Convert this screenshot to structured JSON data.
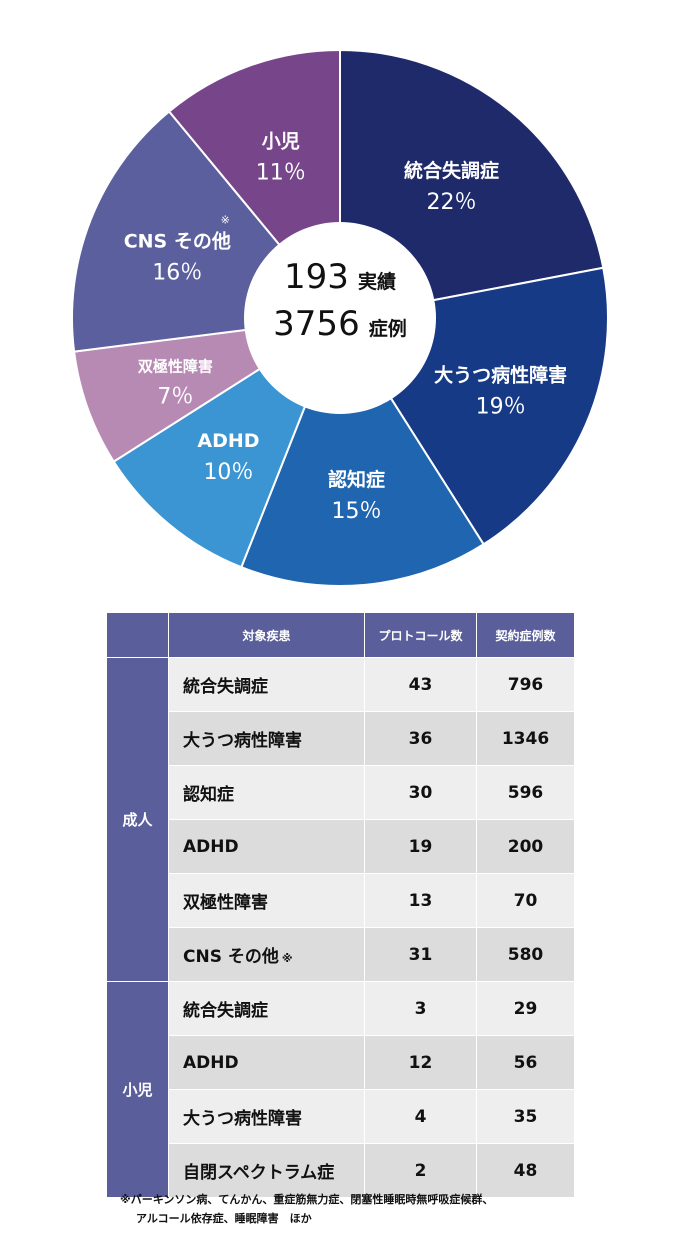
{
  "chart_data": {
    "type": "pie",
    "center_line1_num": "193",
    "center_line1_unit": "実績",
    "center_line2_num": "3756",
    "center_line2_unit": "症例",
    "slices": [
      {
        "label": "統合失調症",
        "pct_text": "22％",
        "value": 22,
        "color": "#1f2a6b"
      },
      {
        "label": "大うつ病性障害",
        "pct_text": "19％",
        "value": 19,
        "color": "#173a87"
      },
      {
        "label": "認知症",
        "pct_text": "15％",
        "value": 15,
        "color": "#2065b0"
      },
      {
        "label": "ADHD",
        "pct_text": "10％",
        "value": 10,
        "color": "#3b95d2"
      },
      {
        "label": "双極性障害",
        "pct_text": "7％",
        "value": 7,
        "color": "#b78ab4"
      },
      {
        "label": "CNS その他",
        "note": "※",
        "pct_text": "16％",
        "value": 16,
        "color": "#5b5f9d"
      },
      {
        "label": "小児",
        "pct_text": "11％",
        "value": 11,
        "color": "#77468a"
      }
    ]
  },
  "table": {
    "headers": [
      "",
      "対象疾患",
      "プロトコール数",
      "契約症例数"
    ],
    "groups": [
      {
        "name": "成人",
        "rows": [
          {
            "disease": "統合失調症",
            "protocols": "43",
            "cases": "796"
          },
          {
            "disease": "大うつ病性障害",
            "protocols": "36",
            "cases": "1346"
          },
          {
            "disease": "認知症",
            "protocols": "30",
            "cases": "596"
          },
          {
            "disease": "ADHD",
            "protocols": "19",
            "cases": "200"
          },
          {
            "disease": "双極性障害",
            "protocols": "13",
            "cases": "70"
          },
          {
            "disease": "CNS その他",
            "note": "※",
            "protocols": "31",
            "cases": "580"
          }
        ]
      },
      {
        "name": "小児",
        "rows": [
          {
            "disease": "統合失調症",
            "protocols": "3",
            "cases": "29"
          },
          {
            "disease": "ADHD",
            "protocols": "12",
            "cases": "56"
          },
          {
            "disease": "大うつ病性障害",
            "protocols": "4",
            "cases": "35"
          },
          {
            "disease": "自閉スペクトラム症",
            "protocols": "2",
            "cases": "48"
          }
        ]
      }
    ]
  },
  "footnote": {
    "line1": "※パーキンソン病、てんかん、重症筋無力症、閉塞性睡眠時無呼吸症候群、",
    "line2": "アルコール依存症、睡眠障害　ほか"
  }
}
